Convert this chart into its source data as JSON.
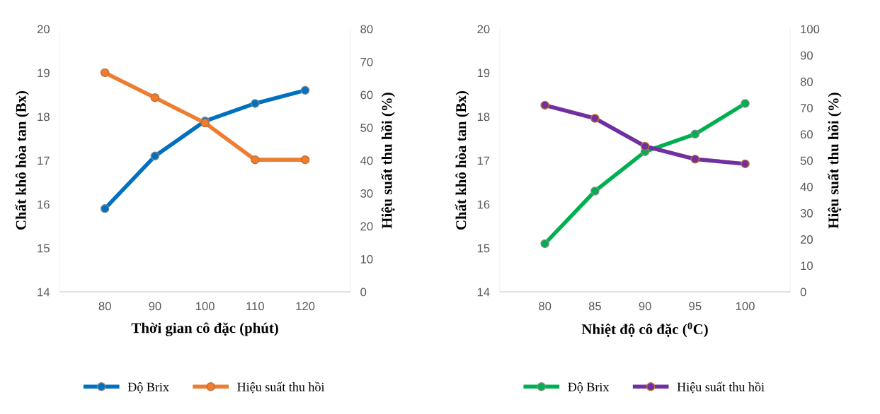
{
  "chart_data": [
    {
      "type": "line",
      "xlabel": "Thời gian cô đặc (phút)",
      "ylabel": "Chất khô hòa tan (Bx)",
      "y2label": "Hiệu suất thu hồi (%)",
      "categories": [
        "80",
        "90",
        "100",
        "110",
        "120"
      ],
      "series": [
        {
          "name": "Độ Brix",
          "color": "#0070c0",
          "values": [
            15.9,
            17.1,
            17.9,
            18.3,
            18.6
          ]
        },
        {
          "name": "Hiệu suất thu hồi",
          "color": "#ed7d31",
          "axis": "y2",
          "values": [
            66.7,
            59.1,
            51.4,
            40.2,
            40.2
          ]
        }
      ],
      "ylim": [
        14,
        20
      ],
      "yticks": [
        14,
        15,
        16,
        17,
        18,
        19,
        20
      ],
      "y2lim": [
        0,
        80
      ],
      "y2ticks": [
        0,
        10,
        20,
        30,
        40,
        50,
        60,
        70,
        80
      ],
      "marker": "circle",
      "grid": false,
      "legend": "bottom"
    },
    {
      "type": "line",
      "xlabel": "Nhiệt độ cô đặc ($^{0}$C)",
      "ylabel": "Chất khô hòa tan (Bx)",
      "y2label": "Hiệu suất thu hồi (%)",
      "categories": [
        "80",
        "85",
        "90",
        "95",
        "100"
      ],
      "series": [
        {
          "name": "Độ Brix",
          "color": "#00b050",
          "values": [
            15.1,
            16.3,
            17.2,
            17.6,
            18.3
          ]
        },
        {
          "name": "Hiệu suất thu hồi",
          "color": "#7030a0",
          "axis": "y2",
          "values": [
            71,
            66,
            55.4,
            50.5,
            48.7
          ]
        }
      ],
      "ylim": [
        14,
        20
      ],
      "yticks": [
        14,
        15,
        16,
        17,
        18,
        19,
        20
      ],
      "y2lim": [
        0,
        100
      ],
      "y2ticks": [
        0,
        10,
        20,
        30,
        40,
        50,
        60,
        70,
        80,
        90,
        100
      ],
      "marker": "circle",
      "grid": false,
      "legend": "bottom"
    }
  ]
}
